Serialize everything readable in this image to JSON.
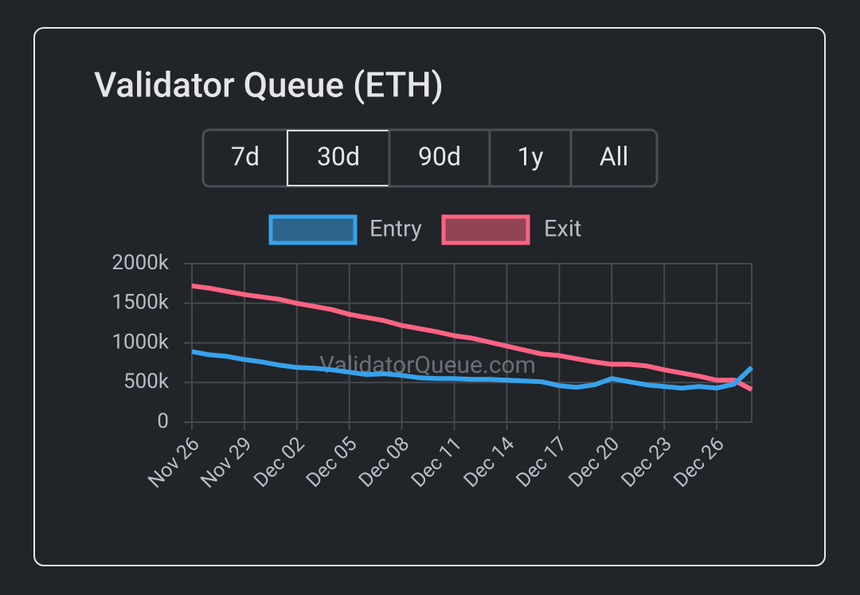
{
  "title": "Validator Queue (ETH)",
  "range_buttons": [
    "7d",
    "30d",
    "90d",
    "1y",
    "All"
  ],
  "selected_range": 1,
  "watermark": "ValidatorQueue.com",
  "chart_data": {
    "type": "line",
    "categories": [
      "Nov 26",
      null,
      null,
      "Nov 29",
      null,
      null,
      "Dec 02",
      null,
      null,
      "Dec 05",
      null,
      null,
      "Dec 08",
      null,
      null,
      "Dec 11",
      null,
      null,
      "Dec 14",
      null,
      null,
      "Dec 17",
      null,
      null,
      "Dec 20",
      null,
      null,
      "Dec 23",
      null,
      null,
      "Dec 26",
      null,
      null
    ],
    "series": [
      {
        "name": "Entry",
        "color": "#36a2eb",
        "values": [
          890000,
          850000,
          830000,
          790000,
          760000,
          720000,
          690000,
          680000,
          660000,
          630000,
          600000,
          610000,
          590000,
          560000,
          550000,
          550000,
          540000,
          540000,
          530000,
          520000,
          510000,
          460000,
          440000,
          470000,
          550000,
          510000,
          470000,
          450000,
          430000,
          450000,
          430000,
          480000,
          690000
        ]
      },
      {
        "name": "Exit",
        "color": "#ff6384",
        "values": [
          1720000,
          1690000,
          1650000,
          1610000,
          1580000,
          1550000,
          1500000,
          1460000,
          1420000,
          1360000,
          1320000,
          1280000,
          1220000,
          1180000,
          1140000,
          1090000,
          1060000,
          1010000,
          960000,
          910000,
          860000,
          840000,
          800000,
          760000,
          730000,
          730000,
          710000,
          660000,
          620000,
          580000,
          530000,
          530000,
          410000
        ]
      }
    ],
    "ylim": [
      0,
      2000000
    ],
    "yticks": [
      0,
      {
        "value": 500000,
        "label": "500k"
      },
      {
        "value": 1000000,
        "label": "1000k"
      },
      {
        "value": 1500000,
        "label": "1500k"
      },
      {
        "value": 2000000,
        "label": "2000k"
      }
    ],
    "grid": true,
    "legend": "top"
  }
}
